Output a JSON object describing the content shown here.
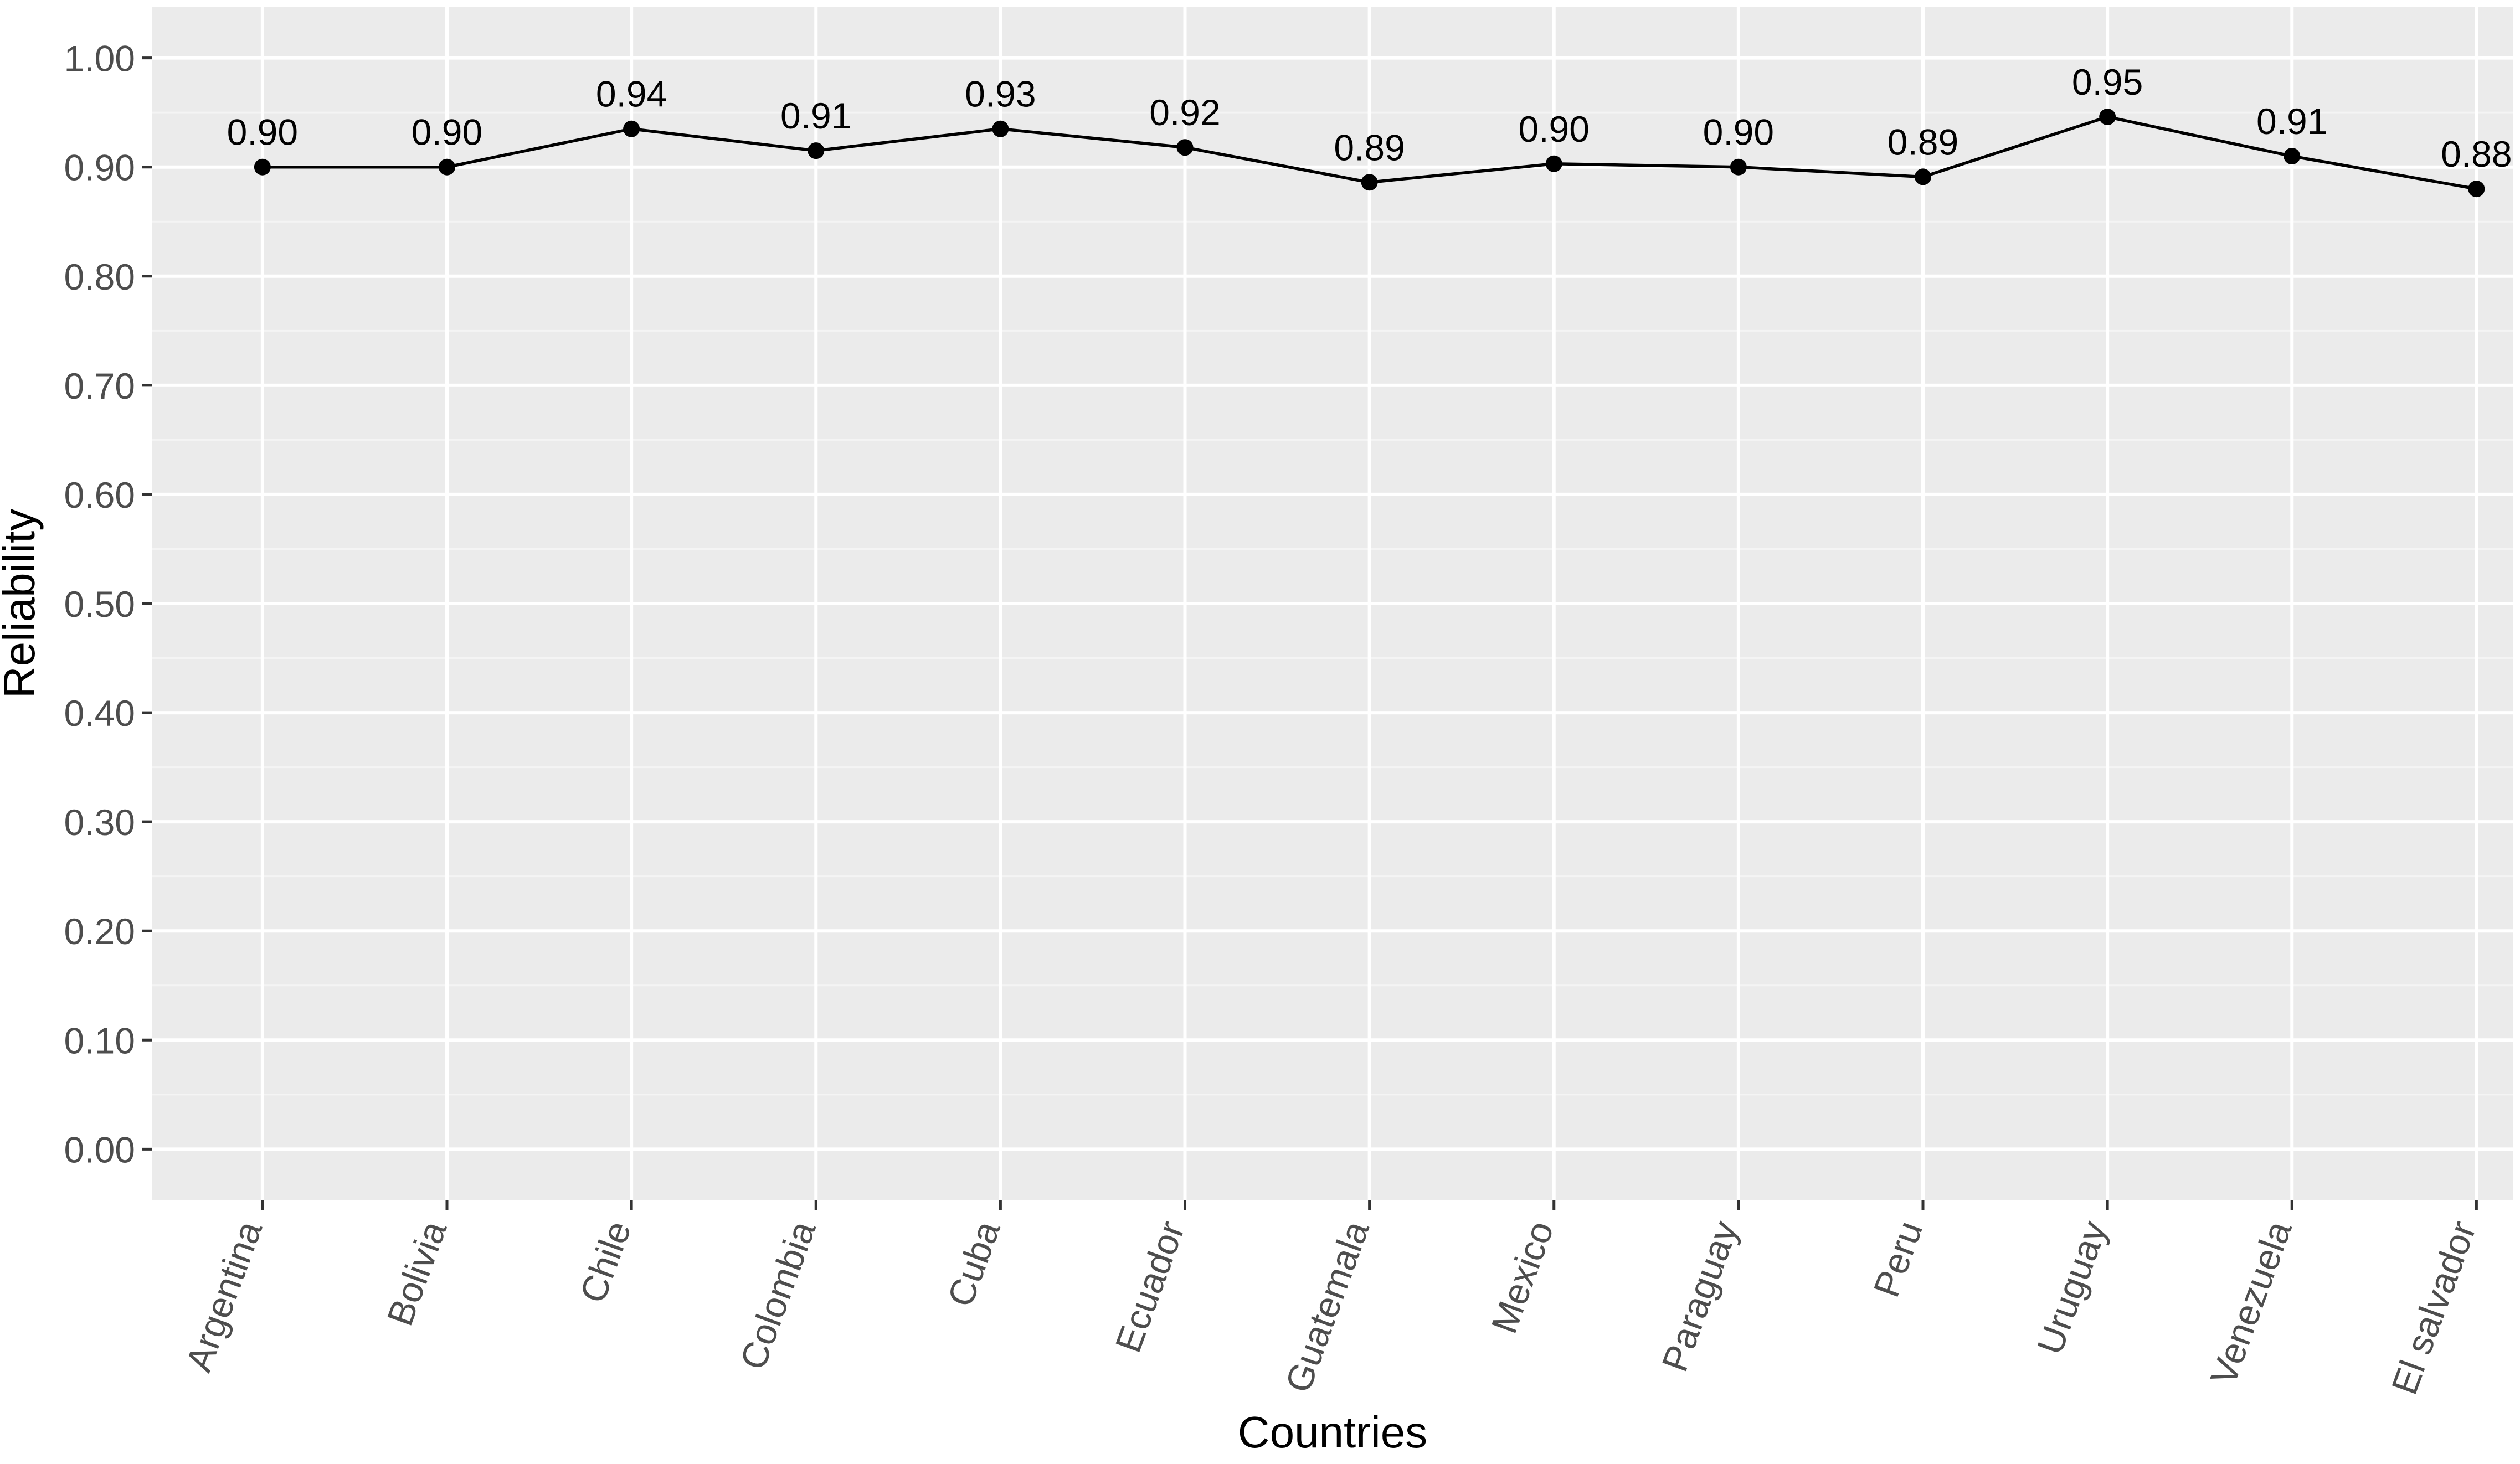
{
  "chart_data": {
    "type": "line",
    "title": "",
    "xlabel": "Countries",
    "ylabel": "Reliability",
    "categories": [
      "Argentina",
      "Bolivia",
      "Chile",
      "Colombia",
      "Cuba",
      "Ecuador",
      "Guatemala",
      "Mexico",
      "Paraguay",
      "Peru",
      "Uruguay",
      "Venezuela",
      "El salvador"
    ],
    "values": [
      0.9,
      0.9,
      0.935,
      0.915,
      0.935,
      0.918,
      0.886,
      0.903,
      0.9,
      0.891,
      0.946,
      0.91,
      0.88
    ],
    "data_labels": [
      "0.90",
      "0.90",
      "0.94",
      "0.91",
      "0.93",
      "0.92",
      "0.89",
      "0.90",
      "0.90",
      "0.89",
      "0.95",
      "0.91",
      "0.88"
    ],
    "y_ticks": [
      0.0,
      0.1,
      0.2,
      0.3,
      0.4,
      0.5,
      0.6,
      0.7,
      0.8,
      0.9,
      1.0
    ],
    "y_tick_labels": [
      "0.00",
      "0.10",
      "0.20",
      "0.30",
      "0.40",
      "0.50",
      "0.60",
      "0.70",
      "0.80",
      "0.90",
      "1.00"
    ],
    "ylim": [
      -0.047,
      1.047
    ],
    "grid": true,
    "legend": "none",
    "colors": {
      "panel_background": "#ebebeb",
      "grid_major": "#ffffff",
      "grid_minor": "#f4f4f4",
      "line": "#000000",
      "point": "#000000",
      "tick_text": "#4d4d4d",
      "axis_title": "#000000"
    }
  }
}
